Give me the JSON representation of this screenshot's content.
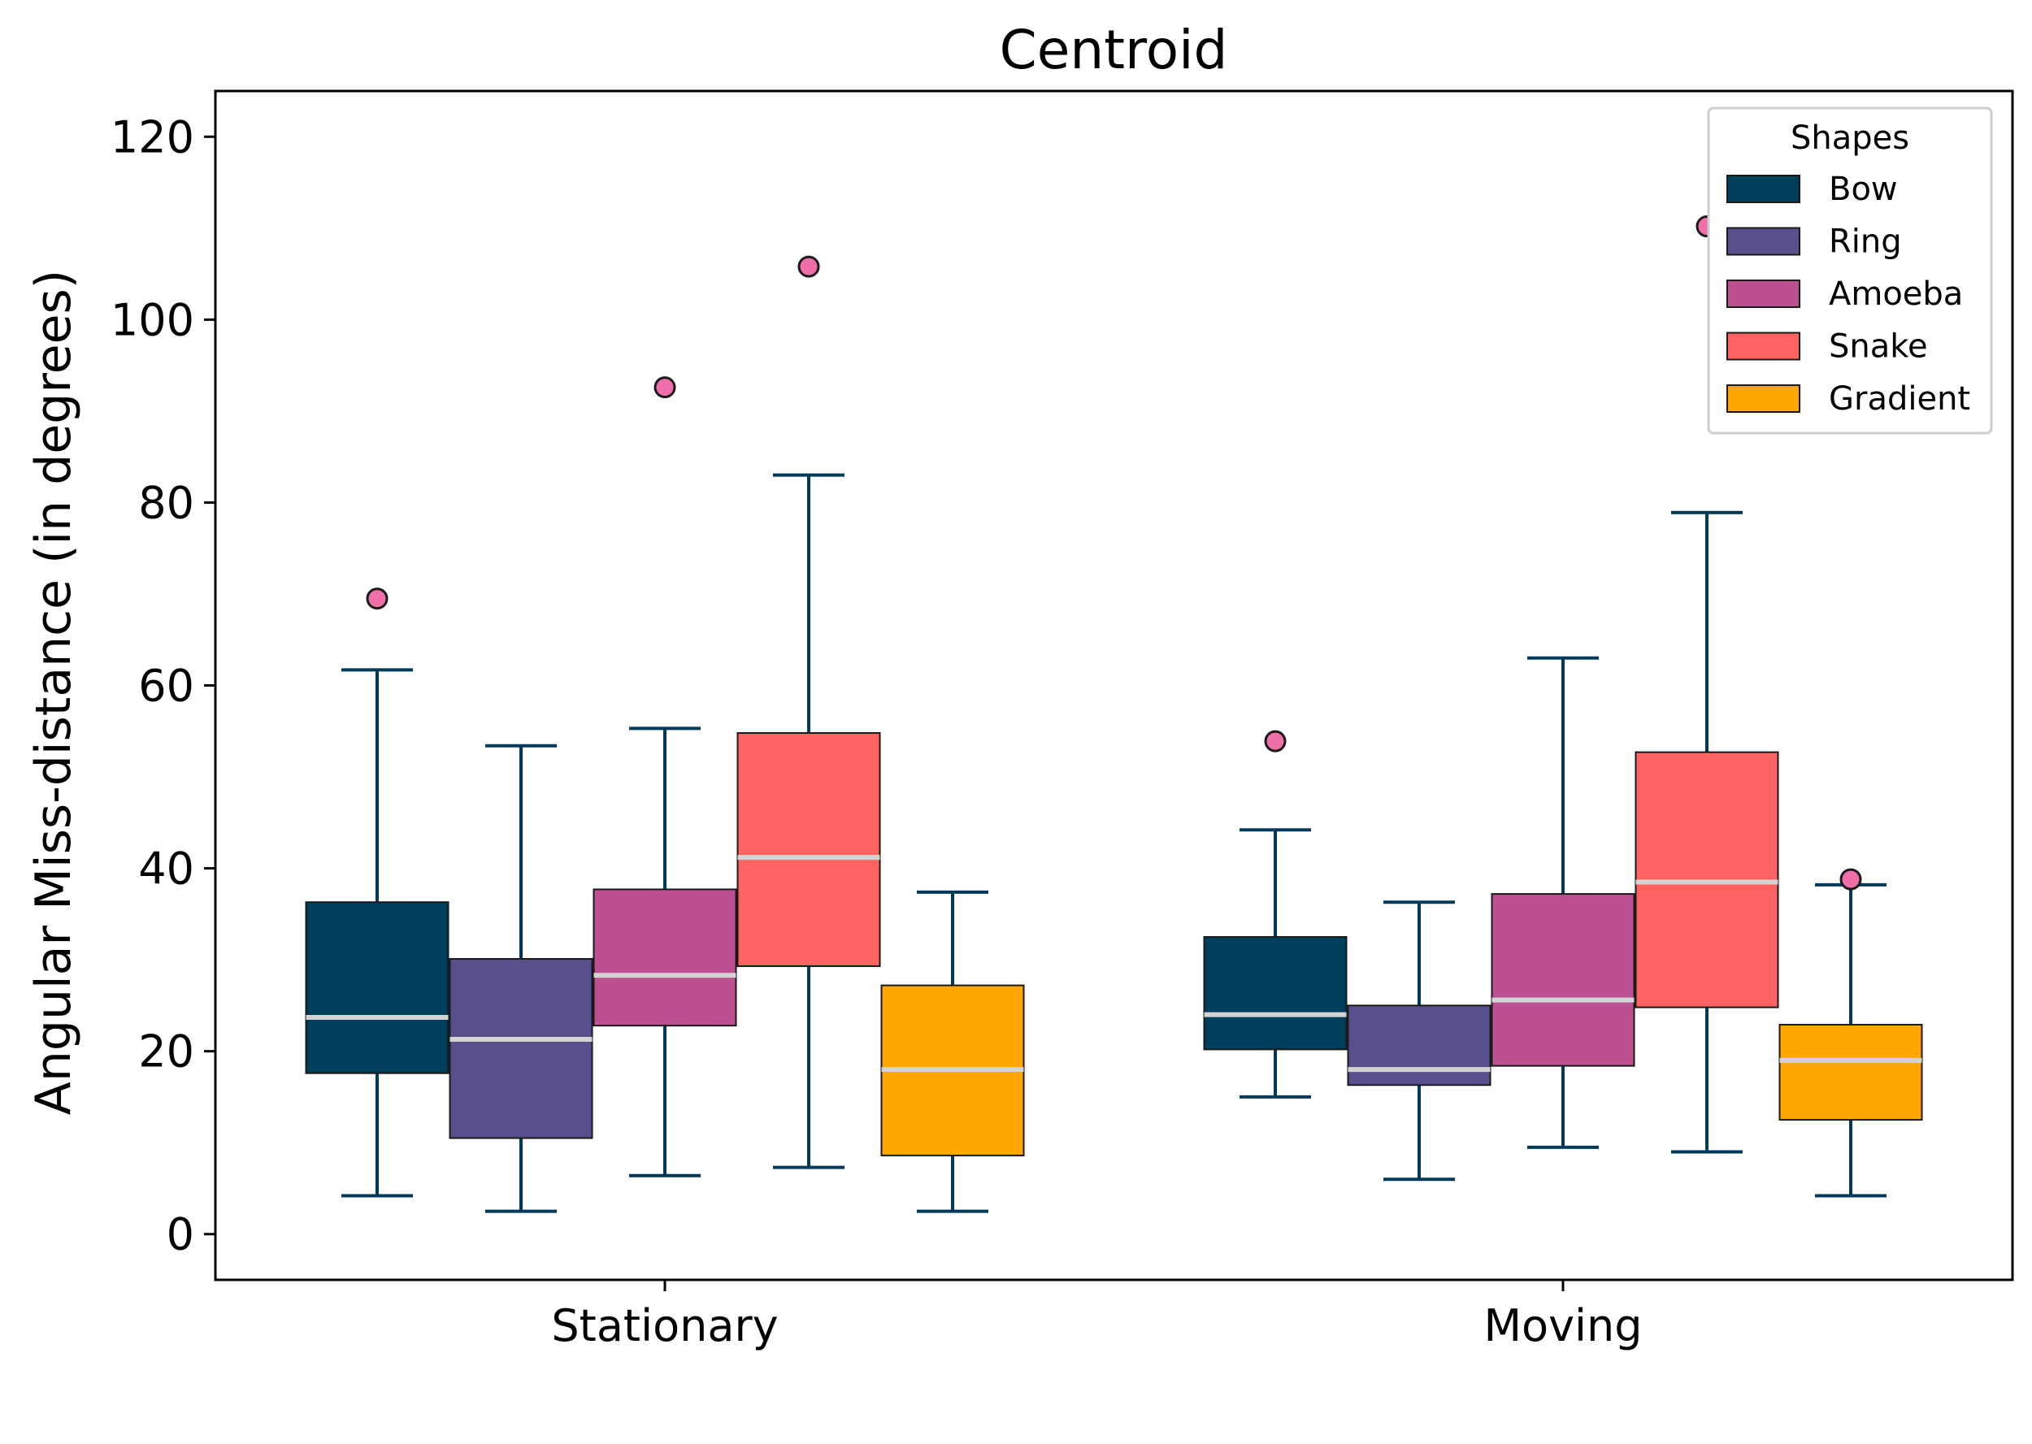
{
  "chart_data": {
    "type": "box",
    "title": "Centroid",
    "xlabel": "",
    "ylabel": "Angular Miss-distance (in degrees)",
    "ylim": [
      -5,
      125
    ],
    "yticks": [
      0,
      20,
      40,
      60,
      80,
      100,
      120
    ],
    "categories": [
      "Stationary",
      "Moving"
    ],
    "legend": {
      "title": "Shapes",
      "position": "top-right"
    },
    "colors": {
      "whisker": "#003a5a",
      "median": "#d3d3d3",
      "outlier": "#f06eaa",
      "box_edge": "#1a1a1a"
    },
    "series": [
      {
        "name": "Bow",
        "color": "#003f5c",
        "stats": [
          {
            "whislo": 4.2,
            "q1": 17.6,
            "med": 23.7,
            "q3": 36.3,
            "whishi": 61.7,
            "fliers": [
              69.5
            ]
          },
          {
            "whislo": 15.0,
            "q1": 20.2,
            "med": 24.0,
            "q3": 32.5,
            "whishi": 44.2,
            "fliers": [
              53.9
            ]
          }
        ]
      },
      {
        "name": "Ring",
        "color": "#58508d",
        "stats": [
          {
            "whislo": 2.5,
            "q1": 10.5,
            "med": 21.3,
            "q3": 30.1,
            "whishi": 53.4,
            "fliers": []
          },
          {
            "whislo": 6.0,
            "q1": 16.3,
            "med": 18.0,
            "q3": 25.0,
            "whishi": 36.3,
            "fliers": []
          }
        ]
      },
      {
        "name": "Amoeba",
        "color": "#bc5090",
        "stats": [
          {
            "whislo": 6.4,
            "q1": 22.8,
            "med": 28.3,
            "q3": 37.7,
            "whishi": 55.3,
            "fliers": [
              92.6
            ]
          },
          {
            "whislo": 9.5,
            "q1": 18.4,
            "med": 25.6,
            "q3": 37.2,
            "whishi": 63.0,
            "fliers": []
          }
        ]
      },
      {
        "name": "Snake",
        "color": "#ff6361",
        "stats": [
          {
            "whislo": 7.3,
            "q1": 29.3,
            "med": 41.2,
            "q3": 54.8,
            "whishi": 83.0,
            "fliers": [
              105.8
            ]
          },
          {
            "whislo": 9.0,
            "q1": 24.8,
            "med": 38.5,
            "q3": 52.7,
            "whishi": 78.9,
            "fliers": [
              110.2
            ]
          }
        ]
      },
      {
        "name": "Gradient",
        "color": "#ffa600",
        "stats": [
          {
            "whislo": 2.5,
            "q1": 8.6,
            "med": 18.0,
            "q3": 27.2,
            "whishi": 37.4,
            "fliers": []
          },
          {
            "whislo": 4.2,
            "q1": 12.5,
            "med": 19.0,
            "q3": 22.9,
            "whishi": 38.2,
            "fliers": [
              38.8
            ]
          }
        ]
      }
    ]
  }
}
